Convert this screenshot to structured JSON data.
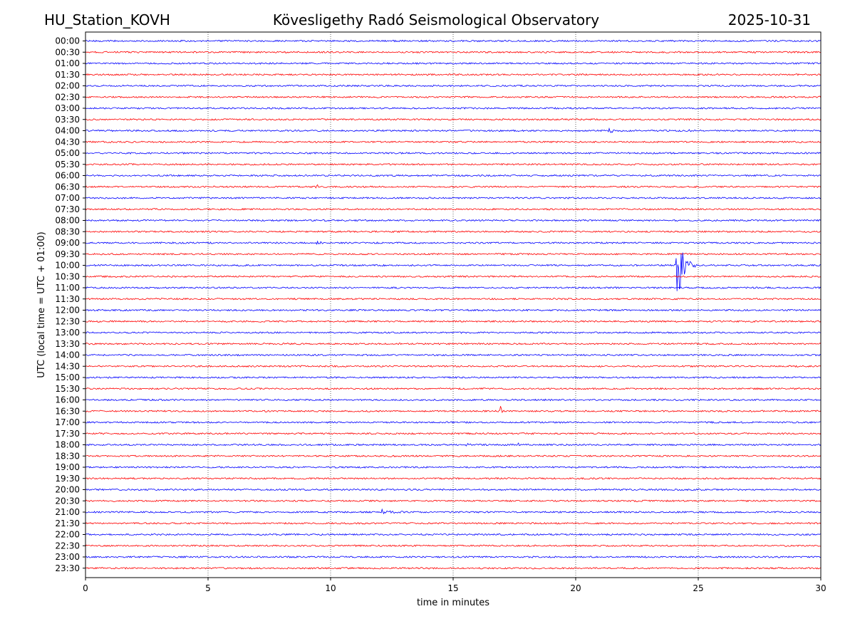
{
  "header": {
    "station": "HU_Station_KOVH",
    "observatory": "Kövesligethy Radó Seismological Observatory",
    "date": "2025-10-31"
  },
  "chart_data": {
    "type": "line",
    "title": "Kövesligethy Radó Seismological Observatory",
    "xlabel": "time in minutes",
    "ylabel": "UTC (local time = UTC + 01:00)",
    "xlim": [
      0,
      30
    ],
    "xticks": [
      0,
      5,
      10,
      15,
      20,
      25,
      30
    ],
    "grid": "vertical dotted at x ticks",
    "trace_colors": [
      "#0000ff",
      "#ff0000"
    ],
    "rows": [
      "00:00",
      "00:30",
      "01:00",
      "01:30",
      "02:00",
      "02:30",
      "03:00",
      "03:30",
      "04:00",
      "04:30",
      "05:00",
      "05:30",
      "06:00",
      "06:30",
      "07:00",
      "07:30",
      "08:00",
      "08:30",
      "09:00",
      "09:30",
      "10:00",
      "10:30",
      "11:00",
      "11:30",
      "12:00",
      "12:30",
      "13:00",
      "13:30",
      "14:00",
      "14:30",
      "15:00",
      "15:30",
      "16:00",
      "16:30",
      "17:00",
      "17:30",
      "18:00",
      "18:30",
      "19:00",
      "19:30",
      "20:00",
      "20:30",
      "21:00",
      "21:30",
      "22:00",
      "22:30",
      "23:00",
      "23:30"
    ],
    "events": [
      {
        "row": "04:00",
        "start_min": 21.3,
        "end_min": 22.3,
        "amp": 0.3
      },
      {
        "row": "04:00",
        "start_min": 24.6,
        "end_min": 24.9,
        "amp": 0.2
      },
      {
        "row": "06:30",
        "start_min": 9.4,
        "end_min": 9.6,
        "amp": 0.6
      },
      {
        "row": "09:00",
        "start_min": 9.4,
        "end_min": 9.9,
        "amp": 0.35
      },
      {
        "row": "10:00",
        "start_min": 24.1,
        "end_min": 24.9,
        "amp": 5.2
      },
      {
        "row": "16:30",
        "start_min": 16.9,
        "end_min": 17.2,
        "amp": 0.9
      },
      {
        "row": "18:00",
        "start_min": 15.5,
        "end_min": 15.9,
        "amp": 0.45
      },
      {
        "row": "18:00",
        "start_min": 17.6,
        "end_min": 18.1,
        "amp": 0.3
      },
      {
        "row": "21:00",
        "start_min": 12.0,
        "end_min": 13.6,
        "amp": 0.35
      }
    ]
  }
}
